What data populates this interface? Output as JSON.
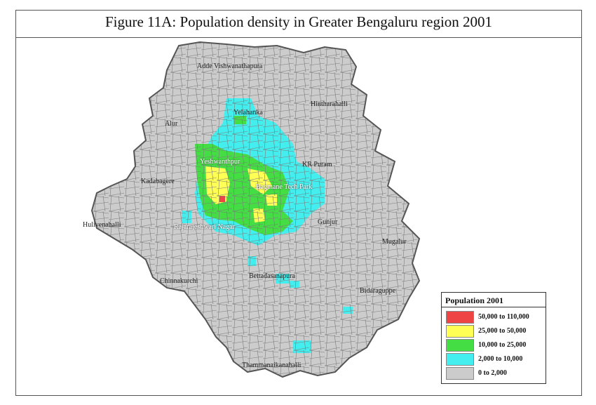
{
  "figure": {
    "title": "Figure 11A: Population density in Greater Bengaluru region 2001"
  },
  "map": {
    "places": [
      {
        "id": "adde",
        "name": "Adde Vishwanathapura"
      },
      {
        "id": "yelahanka",
        "name": "Yelahanka"
      },
      {
        "id": "hinthara",
        "name": "Hintharahalli"
      },
      {
        "id": "alur",
        "name": "Alur"
      },
      {
        "id": "yeshwanth",
        "name": "Yeshwanthpur"
      },
      {
        "id": "krpuram",
        "name": "KR Puram"
      },
      {
        "id": "kadaba",
        "name": "Kadabagere"
      },
      {
        "id": "bagmane",
        "name": "Bagmane Tech Park"
      },
      {
        "id": "gunjur",
        "name": "Gunjur"
      },
      {
        "id": "hulive",
        "name": "Hulivenahalli"
      },
      {
        "id": "rajaraj",
        "name": "Rajarajeshwari Nagar"
      },
      {
        "id": "mugalur",
        "name": "Mugalur"
      },
      {
        "id": "bettada",
        "name": "Bettadasanapura"
      },
      {
        "id": "chinna",
        "name": "Chinnakurchi"
      },
      {
        "id": "bidara",
        "name": "Bidaraguppe"
      },
      {
        "id": "thamma",
        "name": "Thammanaikanahalli"
      }
    ],
    "colors": {
      "boundary": "#555555",
      "ward_lines": "#7a7a7a"
    }
  },
  "legend": {
    "title": "Population 2001",
    "classes": [
      {
        "label": "50,000  to  110,000",
        "color": "#ee4444"
      },
      {
        "label": "25,000  to    50,000",
        "color": "#ffff55"
      },
      {
        "label": "10,000  to    25,000",
        "color": "#44dd44"
      },
      {
        "label": "2,000  to    10,000",
        "color": "#44eeee"
      },
      {
        "label": "0  to     2,000",
        "color": "#cccccc"
      }
    ]
  }
}
